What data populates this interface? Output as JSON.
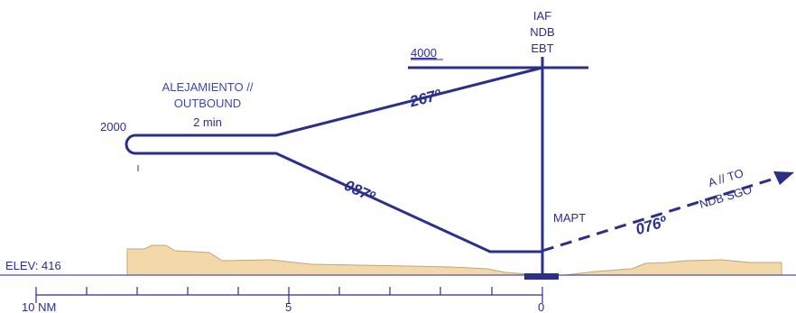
{
  "fix": {
    "line1": "IAF",
    "line2": "NDB",
    "line3": "EBT"
  },
  "altitudes": {
    "iaf": "4000",
    "procedure_turn": "2000"
  },
  "outbound_note": {
    "line1": "ALEJAMIENTO //",
    "line2": "OUTBOUND",
    "line3": "2 min"
  },
  "courses": {
    "outbound": "267º",
    "inbound": "087º",
    "missed_approach": "076º"
  },
  "mapt_label": "MAPT",
  "missed_approach_note": {
    "line1": "A // TO",
    "line2": "NDB SGO"
  },
  "elevation_label": "ELEV: 416",
  "distance_scale": {
    "labels": [
      "10 NM",
      "5",
      "0"
    ]
  },
  "colors": {
    "procedure": "#2b2f8c",
    "terrain_fill": "#f3d9aa",
    "terrain_stroke": "#c9a46a",
    "text": "#2b2f8c"
  }
}
